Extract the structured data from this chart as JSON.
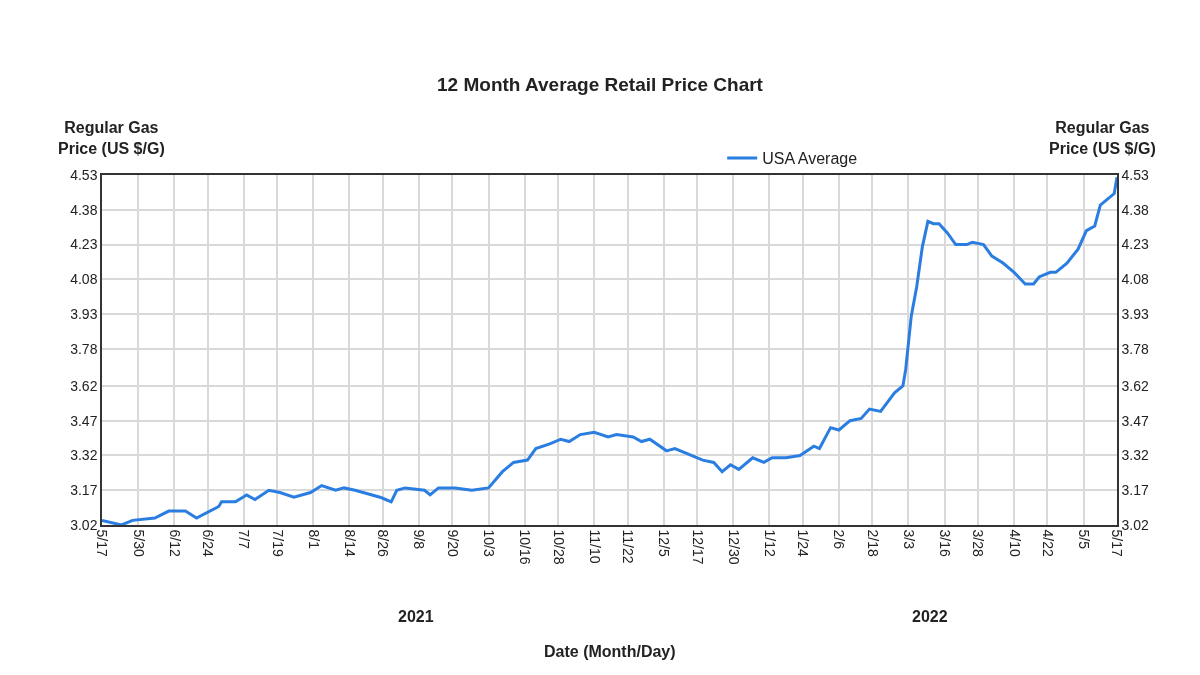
{
  "chart_data": {
    "type": "line",
    "title": "12 Month Average Retail Price Chart",
    "xlabel": "Date (Month/Day)",
    "ylabel": "Regular Gas\nPrice (US $/G)",
    "y2label": "Regular Gas\nPrice (US $/G)",
    "annotations": [
      "2021",
      "2022"
    ],
    "legend": "top",
    "grid": true,
    "marker": "none",
    "line_style": "solid",
    "xlim": [
      "2021-05-17",
      "2022-05-17"
    ],
    "xticks": [
      {
        "value": "2021-05-17",
        "label": "5/17"
      },
      {
        "value": "2021-05-30",
        "label": "5/30"
      },
      {
        "value": "2021-06-12",
        "label": "6/12"
      },
      {
        "value": "2021-06-24",
        "label": "6/24"
      },
      {
        "value": "2021-07-07",
        "label": "7/7"
      },
      {
        "value": "2021-07-19",
        "label": "7/19"
      },
      {
        "value": "2021-08-01",
        "label": "8/1"
      },
      {
        "value": "2021-08-14",
        "label": "8/14"
      },
      {
        "value": "2021-08-26",
        "label": "8/26"
      },
      {
        "value": "2021-09-08",
        "label": "9/8"
      },
      {
        "value": "2021-09-20",
        "label": "9/20"
      },
      {
        "value": "2021-10-03",
        "label": "10/3"
      },
      {
        "value": "2021-10-16",
        "label": "10/16"
      },
      {
        "value": "2021-10-28",
        "label": "10/28"
      },
      {
        "value": "2021-11-10",
        "label": "11/10"
      },
      {
        "value": "2021-11-22",
        "label": "11/22"
      },
      {
        "value": "2021-12-05",
        "label": "12/5"
      },
      {
        "value": "2021-12-17",
        "label": "12/17"
      },
      {
        "value": "2021-12-30",
        "label": "12/30"
      },
      {
        "value": "2022-01-12",
        "label": "1/12"
      },
      {
        "value": "2022-01-24",
        "label": "1/24"
      },
      {
        "value": "2022-02-06",
        "label": "2/6"
      },
      {
        "value": "2022-02-18",
        "label": "2/18"
      },
      {
        "value": "2022-03-03",
        "label": "3/3"
      },
      {
        "value": "2022-03-16",
        "label": "3/16"
      },
      {
        "value": "2022-03-28",
        "label": "3/28"
      },
      {
        "value": "2022-04-10",
        "label": "4/10"
      },
      {
        "value": "2022-04-22",
        "label": "4/22"
      },
      {
        "value": "2022-05-05",
        "label": "5/5"
      },
      {
        "value": "2022-05-17",
        "label": "5/17"
      }
    ],
    "ylim": [
      3.02,
      4.53
    ],
    "yticks": [
      3.02,
      3.17,
      3.32,
      3.47,
      3.62,
      3.78,
      3.93,
      4.08,
      4.23,
      4.38,
      4.53
    ],
    "y2lim": [
      3.02,
      4.53
    ],
    "y2ticks": [
      3.02,
      3.17,
      3.32,
      3.47,
      3.62,
      3.78,
      3.93,
      4.08,
      4.23,
      4.38,
      4.53
    ],
    "x": [
      "2021-05-17",
      "2021-05-24",
      "2021-05-28",
      "2021-06-05",
      "2021-06-10",
      "2021-06-16",
      "2021-06-20",
      "2021-06-28",
      "2021-06-29",
      "2021-07-04",
      "2021-07-08",
      "2021-07-11",
      "2021-07-16",
      "2021-07-20",
      "2021-07-25",
      "2021-07-31",
      "2021-08-04",
      "2021-08-09",
      "2021-08-12",
      "2021-08-16",
      "2021-08-25",
      "2021-08-27",
      "2021-08-29",
      "2021-08-31",
      "2021-09-03",
      "2021-09-10",
      "2021-09-12",
      "2021-09-15",
      "2021-09-21",
      "2021-09-27",
      "2021-10-03",
      "2021-10-08",
      "2021-10-12",
      "2021-10-17",
      "2021-10-20",
      "2021-10-25",
      "2021-10-29",
      "2021-11-01",
      "2021-11-05",
      "2021-11-10",
      "2021-11-15",
      "2021-11-18",
      "2021-11-24",
      "2021-11-27",
      "2021-11-30",
      "2021-12-06",
      "2021-12-09",
      "2021-12-13",
      "2021-12-19",
      "2021-12-23",
      "2021-12-26",
      "2021-12-29",
      "2022-01-01",
      "2022-01-06",
      "2022-01-10",
      "2022-01-13",
      "2022-01-18",
      "2022-01-23",
      "2022-01-28",
      "2022-01-30",
      "2022-02-03",
      "2022-02-06",
      "2022-02-10",
      "2022-02-14",
      "2022-02-17",
      "2022-02-21",
      "2022-02-26",
      "2022-03-01",
      "2022-03-02",
      "2022-03-04",
      "2022-03-06",
      "2022-03-08",
      "2022-03-10",
      "2022-03-12",
      "2022-03-14",
      "2022-03-17",
      "2022-03-20",
      "2022-03-24",
      "2022-03-26",
      "2022-03-30",
      "2022-04-02",
      "2022-04-06",
      "2022-04-10",
      "2022-04-14",
      "2022-04-17",
      "2022-04-19",
      "2022-04-23",
      "2022-04-25",
      "2022-04-29",
      "2022-05-03",
      "2022-05-06",
      "2022-05-09",
      "2022-05-11",
      "2022-05-16",
      "2022-05-17"
    ],
    "series": [
      {
        "name": "USA Average",
        "color": "#2a7de1",
        "values": [
          3.04,
          3.02,
          3.04,
          3.05,
          3.08,
          3.08,
          3.05,
          3.1,
          3.12,
          3.12,
          3.15,
          3.13,
          3.17,
          3.16,
          3.14,
          3.16,
          3.19,
          3.17,
          3.18,
          3.17,
          3.14,
          3.13,
          3.12,
          3.17,
          3.18,
          3.17,
          3.15,
          3.18,
          3.18,
          3.17,
          3.18,
          3.25,
          3.29,
          3.3,
          3.35,
          3.37,
          3.39,
          3.38,
          3.41,
          3.42,
          3.4,
          3.41,
          3.4,
          3.38,
          3.39,
          3.34,
          3.35,
          3.33,
          3.3,
          3.29,
          3.25,
          3.28,
          3.26,
          3.31,
          3.29,
          3.31,
          3.31,
          3.32,
          3.36,
          3.35,
          3.44,
          3.43,
          3.47,
          3.48,
          3.52,
          3.51,
          3.59,
          3.62,
          3.69,
          3.92,
          4.05,
          4.22,
          4.33,
          4.32,
          4.32,
          4.28,
          4.23,
          4.23,
          4.24,
          4.23,
          4.18,
          4.15,
          4.11,
          4.06,
          4.06,
          4.09,
          4.11,
          4.11,
          4.15,
          4.21,
          4.29,
          4.31,
          4.4,
          4.45,
          4.52
        ]
      }
    ]
  }
}
